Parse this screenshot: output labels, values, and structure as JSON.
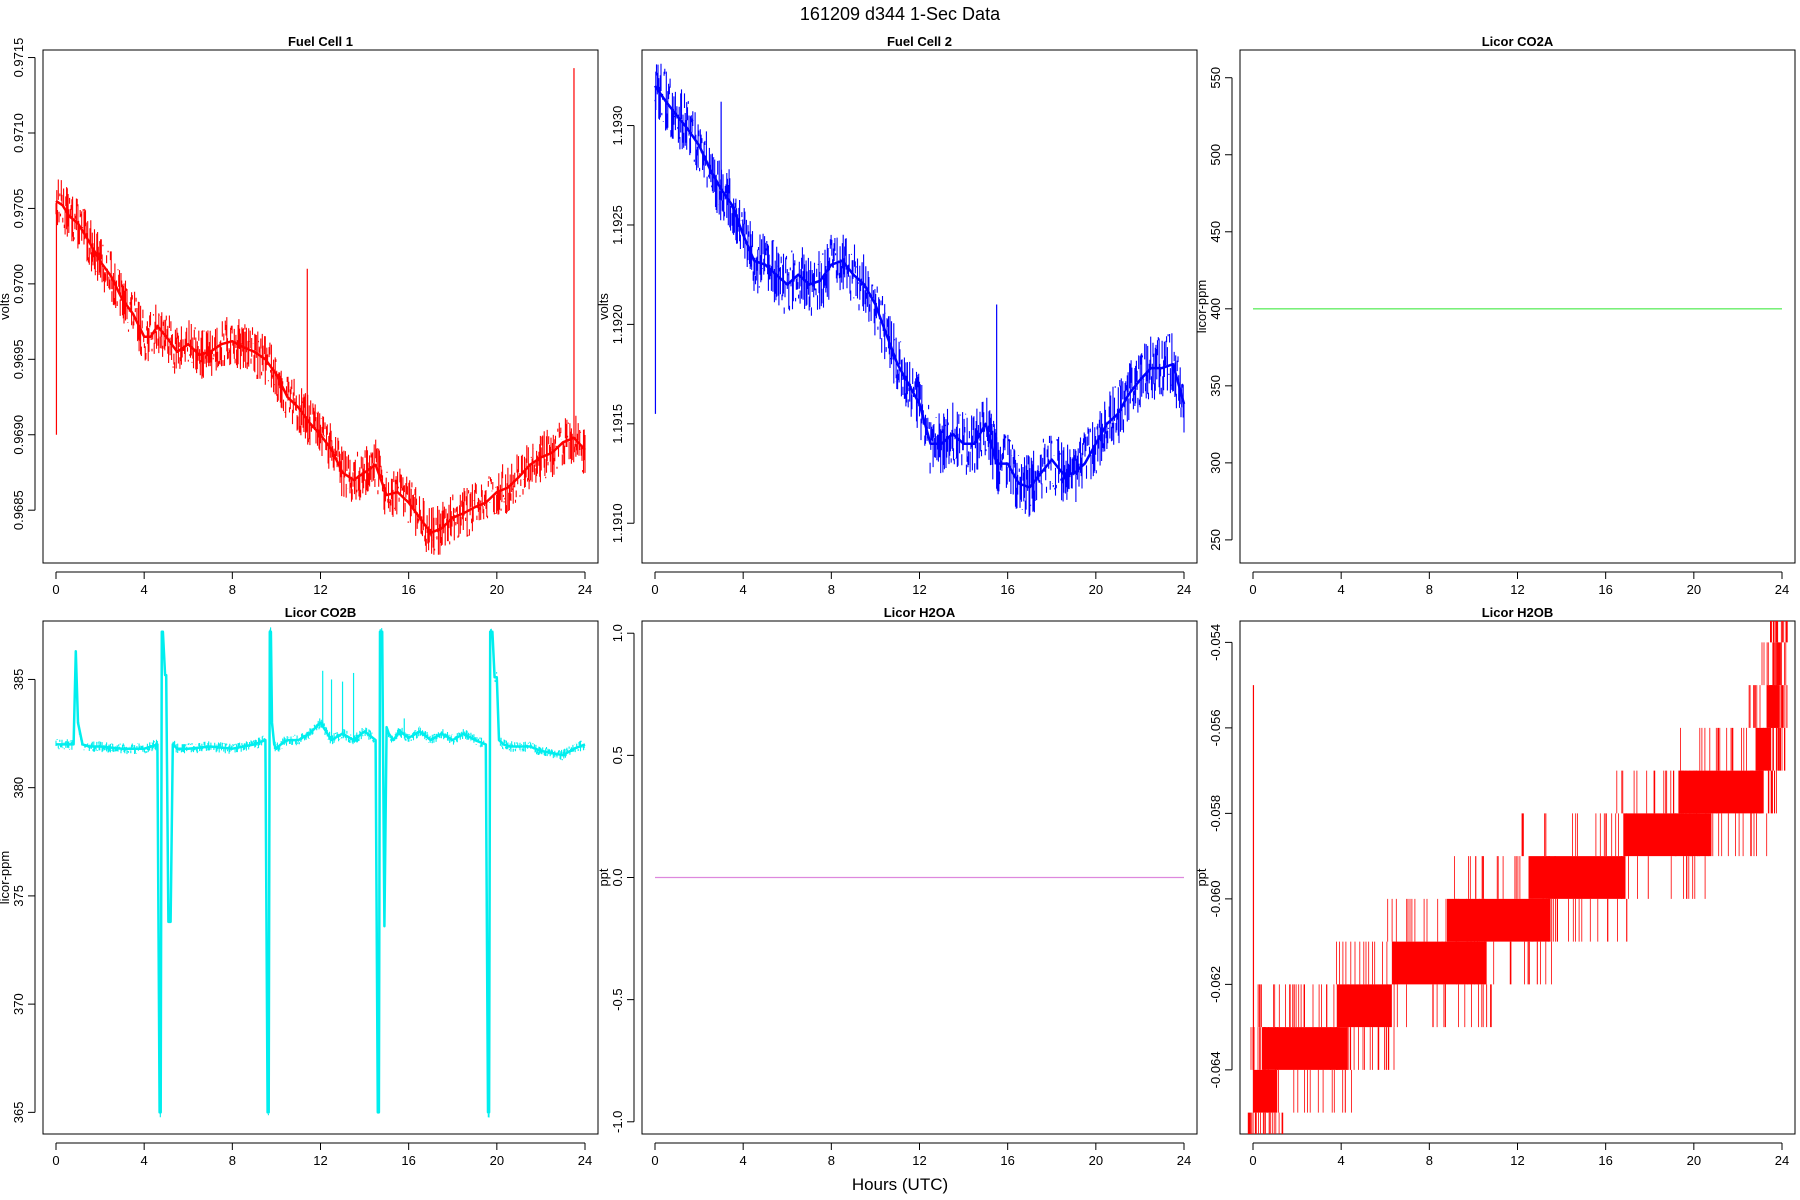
{
  "figure": {
    "title": "161209   d344   1-Sec Data",
    "xlabel": "Hours (UTC)"
  },
  "chart_data": [
    {
      "type": "line",
      "title": "Fuel Cell 1",
      "ylabel": "volts",
      "color": "#ff0000",
      "xlim": [
        0,
        24
      ],
      "ylim": [
        0.96815,
        0.97155
      ],
      "x_ticks": [
        "0",
        "4",
        "8",
        "12",
        "16",
        "20",
        "24"
      ],
      "y_ticks": [
        "0.9685",
        "0.9690",
        "0.9695",
        "0.9700",
        "0.9705",
        "0.9710",
        "0.9715"
      ],
      "band": 0.00017,
      "x": [
        0,
        0.3,
        0.6,
        1,
        1.5,
        2,
        2.5,
        3,
        3.5,
        4,
        4.3,
        4.6,
        5,
        5.5,
        6,
        6.5,
        7,
        7.5,
        8,
        8.5,
        9,
        9.5,
        10,
        10.5,
        11,
        11.5,
        12,
        12.5,
        13,
        13.5,
        14,
        14.5,
        15,
        15.5,
        16,
        16.5,
        17,
        17.5,
        18,
        18.5,
        19,
        19.5,
        20,
        20.5,
        21,
        21.5,
        22,
        22.5,
        23,
        23.5,
        24
      ],
      "values": [
        0.97055,
        0.97052,
        0.97045,
        0.9704,
        0.97028,
        0.97015,
        0.97005,
        0.9699,
        0.9698,
        0.96965,
        0.96965,
        0.96972,
        0.96965,
        0.96955,
        0.9696,
        0.96953,
        0.96955,
        0.9696,
        0.96962,
        0.96958,
        0.96955,
        0.9695,
        0.9694,
        0.96925,
        0.96918,
        0.96908,
        0.969,
        0.9689,
        0.96875,
        0.9687,
        0.96875,
        0.9688,
        0.9686,
        0.96862,
        0.96855,
        0.96845,
        0.96835,
        0.96838,
        0.96845,
        0.96848,
        0.96852,
        0.96855,
        0.96862,
        0.96865,
        0.96872,
        0.9688,
        0.96885,
        0.96888,
        0.96895,
        0.96898,
        0.9689
      ],
      "spikes": [
        {
          "x": 0.02,
          "y": 0.969
        },
        {
          "x": 11.4,
          "y": 0.9701
        },
        {
          "x": 23.5,
          "y": 0.97143
        }
      ]
    },
    {
      "type": "line",
      "title": "Fuel Cell 2",
      "ylabel": "volts",
      "color": "#0000ff",
      "xlim": [
        0,
        24
      ],
      "ylim": [
        1.1908,
        1.19338
      ],
      "x_ticks": [
        "0",
        "4",
        "8",
        "12",
        "16",
        "20",
        "24"
      ],
      "y_ticks": [
        "1.1910",
        "1.1915",
        "1.1920",
        "1.1925",
        "1.1930"
      ],
      "band": 0.00016,
      "x": [
        0,
        0.5,
        1,
        1.5,
        2,
        2.5,
        3,
        3.5,
        4,
        4.5,
        5,
        5.5,
        6,
        6.5,
        7,
        7.5,
        8,
        8.5,
        9,
        9.5,
        10,
        10.5,
        11,
        11.5,
        12,
        12.5,
        13,
        13.5,
        14,
        14.5,
        15,
        15.5,
        16,
        16.5,
        17,
        17.5,
        18,
        18.5,
        19,
        19.5,
        20,
        20.5,
        21,
        21.5,
        22,
        22.5,
        23,
        23.5,
        24
      ],
      "values": [
        1.1932,
        1.19312,
        1.19305,
        1.19298,
        1.1929,
        1.19278,
        1.19268,
        1.1926,
        1.19245,
        1.19232,
        1.1923,
        1.19225,
        1.1922,
        1.19225,
        1.1922,
        1.19222,
        1.1923,
        1.19232,
        1.19225,
        1.1922,
        1.1921,
        1.19195,
        1.1918,
        1.1917,
        1.1916,
        1.1914,
        1.1914,
        1.19145,
        1.1914,
        1.1914,
        1.1915,
        1.1913,
        1.1913,
        1.1912,
        1.19118,
        1.19125,
        1.19132,
        1.19125,
        1.19125,
        1.1913,
        1.1914,
        1.1915,
        1.19155,
        1.19165,
        1.19172,
        1.19178,
        1.19178,
        1.1918,
        1.1916
      ],
      "spikes": [
        {
          "x": 0.02,
          "y": 1.19155
        },
        {
          "x": 3,
          "y": 1.19312
        },
        {
          "x": 15.5,
          "y": 1.1921
        }
      ]
    },
    {
      "type": "line",
      "title": "Licor CO2A",
      "ylabel": "licor-ppm",
      "color": "#66ee66",
      "xlim": [
        0,
        24
      ],
      "ylim": [
        235,
        568
      ],
      "x_ticks": [
        "0",
        "4",
        "8",
        "12",
        "16",
        "20",
        "24"
      ],
      "y_ticks": [
        "250",
        "300",
        "350",
        "400",
        "450",
        "500",
        "550"
      ],
      "band": 0,
      "x": [
        0,
        24
      ],
      "values": [
        400,
        400
      ],
      "spikes": []
    },
    {
      "type": "line",
      "title": "Licor CO2B",
      "ylabel": "licor-ppm",
      "color": "#00eeee",
      "xlim": [
        0,
        24
      ],
      "ylim": [
        364,
        387.7
      ],
      "x_ticks": [
        "0",
        "4",
        "8",
        "12",
        "16",
        "20",
        "24"
      ],
      "y_ticks": [
        "365",
        "370",
        "375",
        "380",
        "385"
      ],
      "band": 0.25,
      "x": [
        0,
        0.8,
        0.9,
        1.0,
        1.2,
        1.5,
        2,
        3,
        4,
        4.6,
        4.7,
        4.75,
        4.8,
        4.85,
        4.95,
        5.0,
        5.1,
        5.2,
        5.3,
        5.5,
        6,
        7,
        8,
        9,
        9.5,
        9.6,
        9.65,
        9.7,
        9.75,
        9.8,
        9.9,
        10.0,
        10.2,
        10.5,
        11,
        11.5,
        12,
        12.5,
        13,
        13.5,
        14,
        14.5,
        14.6,
        14.65,
        14.7,
        14.8,
        14.9,
        15.0,
        15.1,
        15.3,
        15.6,
        16,
        16.5,
        17,
        17.5,
        18,
        18.5,
        19,
        19.5,
        19.6,
        19.65,
        19.7,
        19.8,
        19.9,
        20.0,
        20.1,
        20.3,
        20.6,
        21,
        21.5,
        22,
        22.5,
        23,
        23.5,
        24
      ],
      "values": [
        382,
        382,
        386.3,
        383,
        382,
        381.9,
        381.9,
        381.8,
        381.8,
        382,
        365,
        365,
        387.2,
        387.2,
        385.2,
        385.2,
        373.8,
        373.8,
        382,
        381.8,
        381.8,
        381.9,
        381.8,
        382,
        382.2,
        365,
        365,
        387.2,
        387.2,
        383,
        382,
        381.8,
        382,
        382.2,
        382.2,
        382.5,
        383,
        382.2,
        382.5,
        382.2,
        382.6,
        382.2,
        365,
        365,
        387.2,
        387.2,
        373.6,
        382.8,
        382.5,
        382.2,
        382.6,
        382.3,
        382.6,
        382.2,
        382.5,
        382.2,
        382.5,
        382.2,
        382,
        365,
        365,
        387.2,
        387.2,
        385.1,
        385.1,
        382.2,
        382,
        381.9,
        381.9,
        381.9,
        381.7,
        381.6,
        381.5,
        381.8,
        382
      ],
      "spikes": [
        {
          "x": 12.1,
          "y": 385.4
        },
        {
          "x": 12.5,
          "y": 385
        },
        {
          "x": 13,
          "y": 384.9
        },
        {
          "x": 13.5,
          "y": 385.3
        },
        {
          "x": 15.8,
          "y": 383.2
        }
      ]
    },
    {
      "type": "line",
      "title": "Licor H2OA",
      "ylabel": "ppt",
      "color": "#dd88dd",
      "xlim": [
        0,
        24
      ],
      "ylim": [
        -1.05,
        1.05
      ],
      "x_ticks": [
        "0",
        "4",
        "8",
        "12",
        "16",
        "20",
        "24"
      ],
      "y_ticks": [
        "-1.0",
        "-0.5",
        "0.0",
        "0.5",
        "1.0"
      ],
      "band": 0,
      "x": [
        0,
        24
      ],
      "values": [
        0,
        0
      ],
      "spikes": []
    },
    {
      "type": "line",
      "title": "Licor H2OB",
      "ylabel": "ppt",
      "color": "#ff0000",
      "xlim": [
        0,
        24
      ],
      "ylim": [
        -0.0655,
        -0.0535
      ],
      "x_ticks": [
        "0",
        "4",
        "8",
        "12",
        "16",
        "20",
        "24"
      ],
      "y_ticks": [
        "-0.064",
        "-0.062",
        "-0.060",
        "-0.058",
        "-0.056",
        "-0.054"
      ],
      "band": 0,
      "steps": [
        {
          "x0": 0,
          "x1": 1.1,
          "low": -0.065,
          "high": -0.064
        },
        {
          "x0": 0.4,
          "x1": 4.3,
          "low": -0.064,
          "high": -0.063
        },
        {
          "x0": 3.8,
          "x1": 6.3,
          "low": -0.063,
          "high": -0.062
        },
        {
          "x0": 6.3,
          "x1": 10.6,
          "low": -0.062,
          "high": -0.061
        },
        {
          "x0": 8.8,
          "x1": 13.5,
          "low": -0.061,
          "high": -0.06
        },
        {
          "x0": 12.5,
          "x1": 16.9,
          "low": -0.06,
          "high": -0.059
        },
        {
          "x0": 16.8,
          "x1": 20.8,
          "low": -0.059,
          "high": -0.058
        },
        {
          "x0": 19.3,
          "x1": 23.1,
          "low": -0.058,
          "high": -0.057
        },
        {
          "x0": 22.8,
          "x1": 23.5,
          "low": -0.057,
          "high": -0.056
        },
        {
          "x0": 23.3,
          "x1": 23.9,
          "low": -0.056,
          "high": -0.055
        },
        {
          "x0": 23.75,
          "x1": 23.95,
          "low": -0.055,
          "high": -0.054
        }
      ],
      "spikes": [
        {
          "x": 0.02,
          "y": -0.055
        }
      ]
    }
  ]
}
